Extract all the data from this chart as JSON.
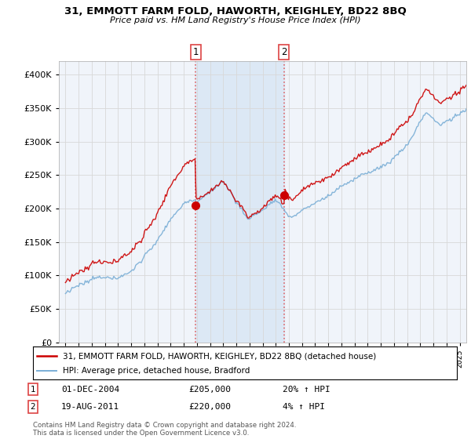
{
  "title": "31, EMMOTT FARM FOLD, HAWORTH, KEIGHLEY, BD22 8BQ",
  "subtitle": "Price paid vs. HM Land Registry's House Price Index (HPI)",
  "legend_line1": "31, EMMOTT FARM FOLD, HAWORTH, KEIGHLEY, BD22 8BQ (detached house)",
  "legend_line2": "HPI: Average price, detached house, Bradford",
  "transaction1_label": "1",
  "transaction1_date": "01-DEC-2004",
  "transaction1_price": "£205,000",
  "transaction1_hpi": "20% ↑ HPI",
  "transaction1_year": 2004.92,
  "transaction1_value": 205000,
  "transaction2_label": "2",
  "transaction2_date": "19-AUG-2011",
  "transaction2_price": "£220,000",
  "transaction2_hpi": "4% ↑ HPI",
  "transaction2_year": 2011.63,
  "transaction2_value": 220000,
  "footer": "Contains HM Land Registry data © Crown copyright and database right 2024.\nThis data is licensed under the Open Government Licence v3.0.",
  "background_color": "#ffffff",
  "plot_bg_color": "#f0f4fa",
  "shaded_region_color": "#dce8f5",
  "red_line_color": "#cc0000",
  "blue_line_color": "#7aaed6",
  "vline_color": "#dd4444",
  "grid_color": "#d8d8d8",
  "ylim": [
    0,
    420000
  ],
  "xlim_start": 1994.5,
  "xlim_end": 2025.5,
  "title_fontsize": 9.5,
  "subtitle_fontsize": 8
}
